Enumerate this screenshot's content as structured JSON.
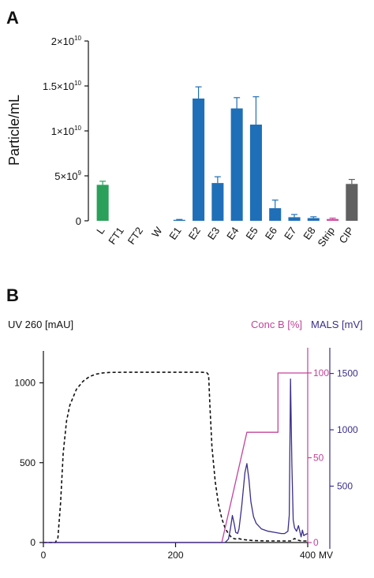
{
  "panel_a_letter": "A",
  "panel_b_letter": "B",
  "chart_data": [
    {
      "type": "bar",
      "panel": "A",
      "ylabel": "Particle/mL",
      "ylim": [
        0,
        20000000000.0
      ],
      "yticks": [
        {
          "value": 0,
          "base": "0",
          "exp": ""
        },
        {
          "value": 5000000000.0,
          "base": "5×10",
          "exp": "9"
        },
        {
          "value": 10000000000.0,
          "base": "1×10",
          "exp": "10"
        },
        {
          "value": 15000000000.0,
          "base": "1.5×10",
          "exp": "10"
        },
        {
          "value": 20000000000.0,
          "base": "2×10",
          "exp": "10"
        }
      ],
      "categories": [
        "L",
        "FT1",
        "FT2",
        "W",
        "E1",
        "E2",
        "E3",
        "E4",
        "E5",
        "E6",
        "E7",
        "E8",
        "Strip",
        "CIP"
      ],
      "values": [
        4000000000.0,
        0,
        0,
        0,
        100000000.0,
        13600000000.0,
        4200000000.0,
        12500000000.0,
        10700000000.0,
        1400000000.0,
        400000000.0,
        300000000.0,
        200000000.0,
        4100000000.0
      ],
      "errors": [
        400000000.0,
        0,
        0,
        0,
        50000000.0,
        1300000000.0,
        700000000.0,
        1200000000.0,
        3100000000.0,
        900000000.0,
        300000000.0,
        150000000.0,
        100000000.0,
        500000000.0
      ],
      "colors": [
        "#2aa05a",
        "#1f6fb8",
        "#1f6fb8",
        "#1f6fb8",
        "#1f6fb8",
        "#1f6fb8",
        "#1f6fb8",
        "#1f6fb8",
        "#1f6fb8",
        "#1f6fb8",
        "#1f6fb8",
        "#1f6fb8",
        "#cc4fa0",
        "#606060"
      ]
    },
    {
      "type": "line",
      "panel": "B",
      "xlabel": "MV",
      "xlim": [
        0,
        400
      ],
      "xticks": [
        0,
        200,
        400
      ],
      "y_left": {
        "label": "UV 260 [mAU]",
        "lim": [
          0,
          1200
        ],
        "ticks": [
          0,
          500,
          1000
        ]
      },
      "y_right1": {
        "label": "Conc B [%]",
        "lim": [
          0,
          113
        ],
        "ticks": [
          0,
          50,
          100
        ],
        "color": "#c2449a"
      },
      "y_right2": {
        "label": "MALS [mV]",
        "lim": [
          0,
          1700
        ],
        "ticks": [
          500,
          1000,
          1500
        ],
        "color": "#3a2e8a"
      },
      "series": [
        {
          "name": "UV 260",
          "axis": "y_left",
          "color": "#111111",
          "dashed": true,
          "x": [
            0,
            18,
            22,
            26,
            30,
            35,
            40,
            50,
            60,
            70,
            80,
            90,
            100,
            120,
            150,
            200,
            240,
            247,
            250,
            252,
            255,
            260,
            265,
            270,
            275,
            280,
            285,
            290,
            295,
            300,
            310,
            320,
            340,
            360,
            375,
            380,
            385,
            390,
            400
          ],
          "y": [
            0,
            0,
            30,
            250,
            560,
            760,
            860,
            960,
            1010,
            1040,
            1055,
            1062,
            1065,
            1066,
            1066,
            1066,
            1066,
            1064,
            1050,
            850,
            600,
            380,
            240,
            150,
            90,
            55,
            30,
            22,
            25,
            20,
            15,
            12,
            10,
            10,
            10,
            25,
            15,
            10,
            10
          ]
        },
        {
          "name": "Conc B",
          "axis": "y_right1",
          "color": "#c2449a",
          "dashed": false,
          "x": [
            0,
            270,
            308,
            355,
            355,
            400
          ],
          "y": [
            0,
            0,
            65,
            65,
            100,
            100
          ]
        },
        {
          "name": "MALS",
          "axis": "y_right2",
          "color": "#3a2e8a",
          "dashed": false,
          "x": [
            0,
            275,
            280,
            283,
            286,
            289,
            291,
            294,
            296,
            300,
            305,
            308,
            311,
            314,
            318,
            322,
            330,
            340,
            350,
            360,
            365,
            370,
            372,
            374,
            376,
            378,
            380,
            383,
            386,
            390,
            392,
            394,
            396,
            400
          ],
          "y": [
            0,
            0,
            30,
            120,
            240,
            160,
            90,
            80,
            120,
            320,
            620,
            700,
            560,
            360,
            230,
            170,
            120,
            100,
            90,
            80,
            80,
            100,
            240,
            1450,
            700,
            200,
            130,
            100,
            150,
            50,
            110,
            60,
            70,
            80
          ]
        }
      ]
    }
  ]
}
